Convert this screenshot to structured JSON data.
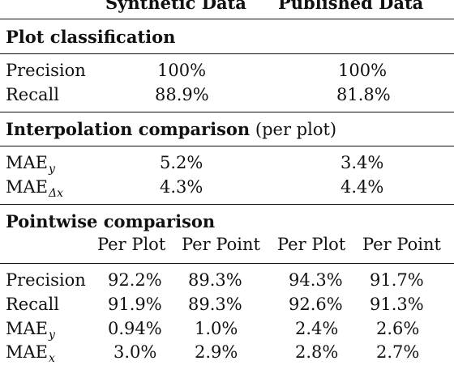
{
  "header": {
    "synthetic": "Synthetic Data",
    "published": "Published Data"
  },
  "plot_classification": {
    "title": "Plot classification",
    "rows": [
      {
        "label": "Precision",
        "synthetic": "100%",
        "published": "100%"
      },
      {
        "label": "Recall",
        "synthetic": "88.9%",
        "published": "81.8%"
      }
    ]
  },
  "interpolation": {
    "title": "Interpolation comparison",
    "title_suffix": "(per plot)",
    "rows": [
      {
        "label_main": "MAE",
        "label_sub": "y",
        "synthetic": "5.2%",
        "published": "3.4%"
      },
      {
        "label_main": "MAE",
        "label_sub": "Δx",
        "synthetic": "4.3%",
        "published": "4.4%"
      }
    ]
  },
  "pointwise": {
    "title": "Pointwise comparison",
    "col_per_plot": "Per Plot",
    "col_per_point": "Per Point",
    "rows": [
      {
        "label_main": "Precision",
        "label_sub": "",
        "syn_plot": "92.2%",
        "syn_point": "89.3%",
        "pub_plot": "94.3%",
        "pub_point": "91.7%"
      },
      {
        "label_main": "Recall",
        "label_sub": "",
        "syn_plot": "91.9%",
        "syn_point": "89.3%",
        "pub_plot": "92.6%",
        "pub_point": "91.3%"
      },
      {
        "label_main": "MAE",
        "label_sub": "y",
        "syn_plot": "0.94%",
        "syn_point": "1.0%",
        "pub_plot": "2.4%",
        "pub_point": "2.6%"
      },
      {
        "label_main": "MAE",
        "label_sub": "x",
        "syn_plot": "3.0%",
        "syn_point": "2.9%",
        "pub_plot": "2.8%",
        "pub_point": "2.7%"
      }
    ]
  }
}
